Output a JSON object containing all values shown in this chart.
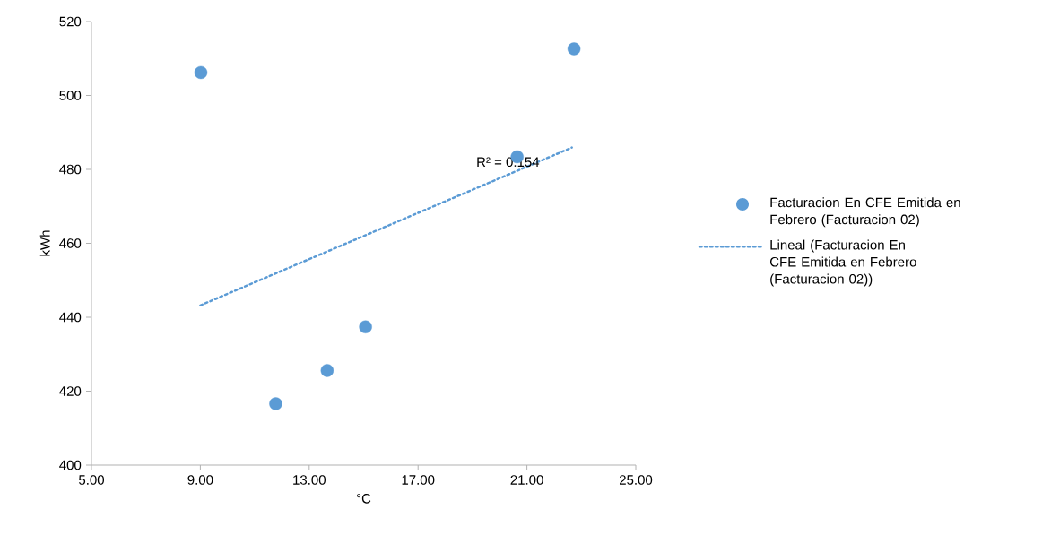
{
  "chart_data": {
    "type": "scatter",
    "xlabel": "°C",
    "ylabel": "kWh",
    "xlim": [
      5,
      25
    ],
    "xticks": [
      {
        "value": 5,
        "label": "5.00"
      },
      {
        "value": 9,
        "label": "9.00"
      },
      {
        "value": 13,
        "label": "13.00"
      },
      {
        "value": 17,
        "label": "17.00"
      },
      {
        "value": 21,
        "label": "21.00"
      },
      {
        "value": 25,
        "label": "25.00"
      }
    ],
    "ylim": [
      400,
      520
    ],
    "yticks": [
      400,
      420,
      440,
      460,
      480,
      500,
      520
    ],
    "legend": "right",
    "marker": "circle",
    "series": [
      {
        "name": "Facturacion En CFE Emitida en Febrero (Facturacion 02)",
        "color": "#5b9bd5",
        "x": [
          9.02,
          22.73,
          20.64,
          15.07,
          13.66,
          11.77
        ],
        "values": [
          506.2,
          512.6,
          483.4,
          437.4,
          425.6,
          416.6
        ]
      },
      {
        "type": "line",
        "name": "Lineal (Facturacion En CFE Emitida en Febrero (Facturacion 02))",
        "color": "#5b9bd5",
        "line_style": "dotted",
        "marker": "none",
        "x": [
          9.0,
          22.65
        ],
        "values": [
          443.2,
          485.9
        ]
      }
    ],
    "annotations": [
      {
        "text": "R² = 0.154",
        "x": 20.3,
        "y": 482
      }
    ]
  }
}
